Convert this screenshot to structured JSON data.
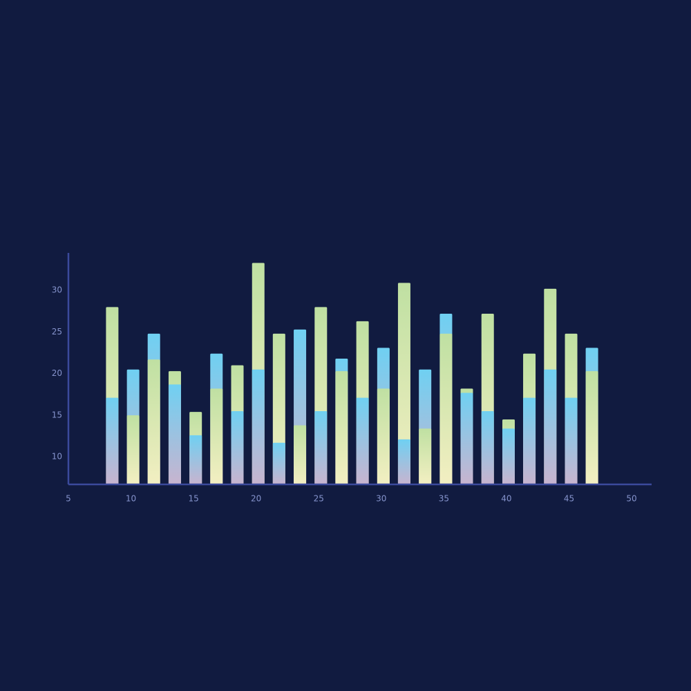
{
  "chart_data": {
    "type": "bar",
    "x": [
      8.5,
      10.17,
      11.83,
      13.5,
      15.17,
      16.83,
      18.5,
      20.17,
      21.83,
      23.5,
      25.17,
      26.83,
      28.5,
      30.17,
      31.83,
      33.5,
      35.17,
      36.83,
      38.5,
      40.17,
      41.83,
      43.5,
      45.17,
      46.83
    ],
    "series": [
      {
        "color": "#bfe0a2",
        "values": [
          28.0,
          15.0,
          21.7,
          20.3,
          15.4,
          18.2,
          21.0,
          33.3,
          24.8,
          13.8,
          28.0,
          20.3,
          26.3,
          18.2,
          30.9,
          13.4,
          24.8,
          18.2,
          27.2,
          14.5,
          22.4,
          30.2,
          24.8,
          20.3
        ]
      },
      {
        "color": "#6fd0f2",
        "values": [
          17.1,
          20.5,
          24.8,
          18.7,
          12.6,
          22.4,
          15.5,
          20.5,
          11.7,
          25.3,
          15.5,
          21.8,
          17.1,
          23.1,
          12.1,
          20.5,
          27.2,
          17.7,
          15.5,
          13.4,
          17.1,
          20.5,
          17.1,
          23.1
        ]
      }
    ],
    "xlim": [
      5,
      51.6
    ],
    "xticks": [
      5,
      10,
      15,
      20,
      25,
      30,
      35,
      40,
      45,
      50
    ],
    "ylim": [
      6.7,
      34.5
    ],
    "yticks": [
      10,
      15,
      20,
      25,
      30
    ]
  }
}
